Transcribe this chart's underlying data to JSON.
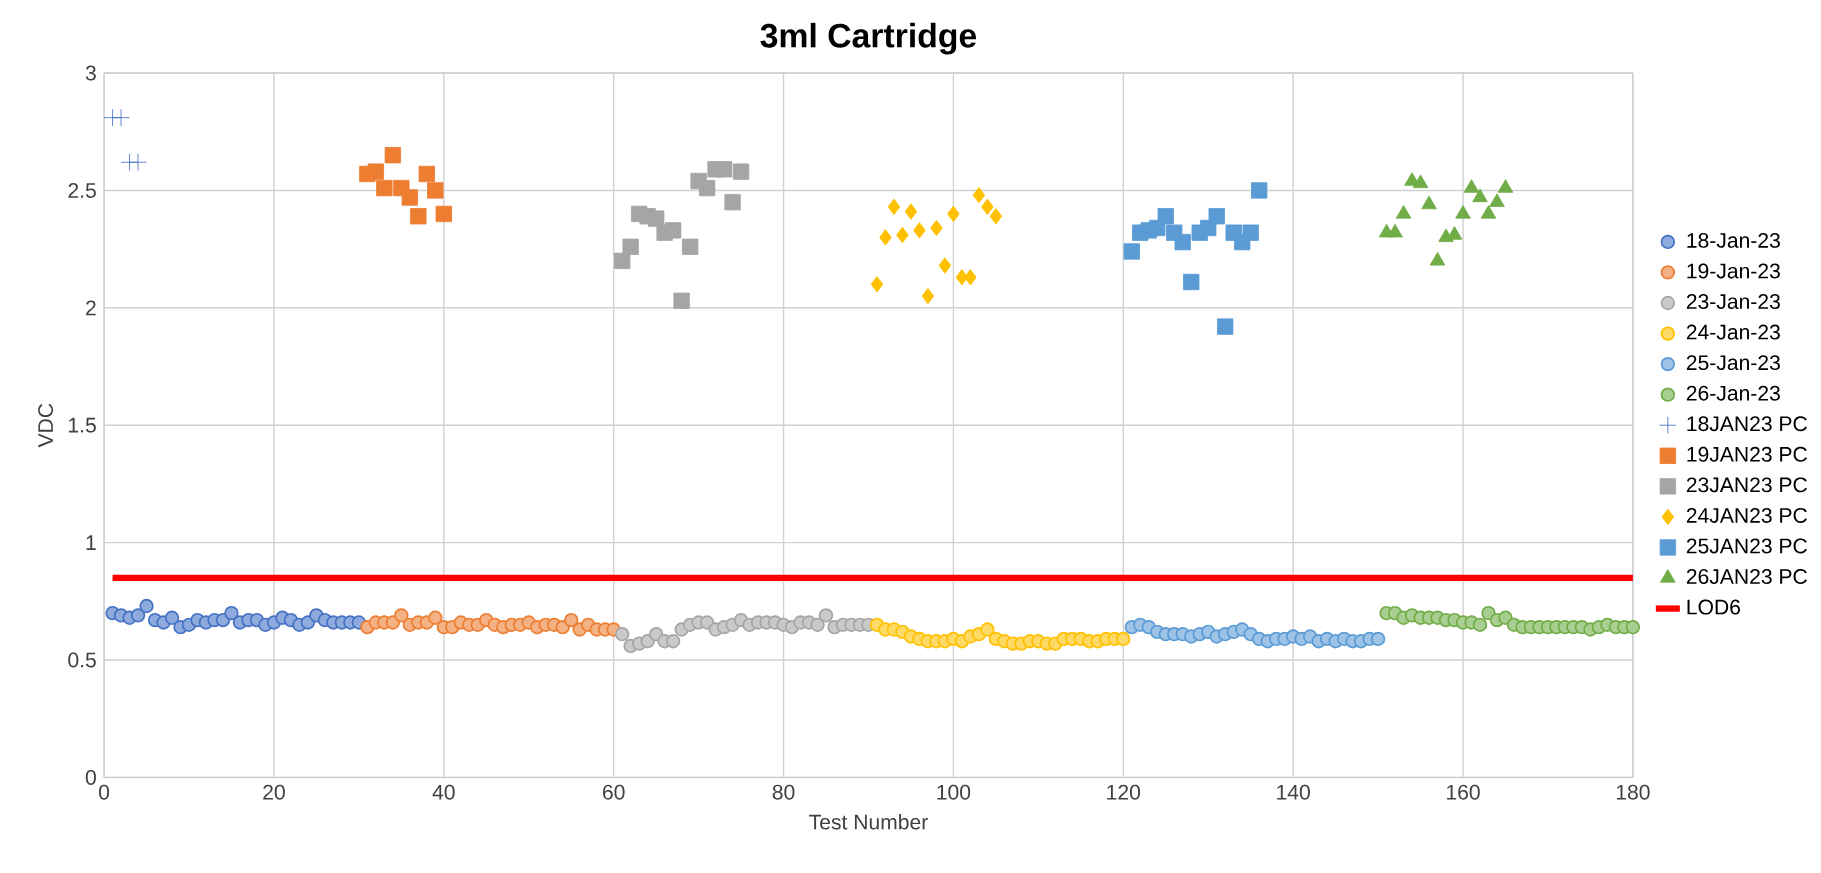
{
  "chart_data": {
    "type": "scatter",
    "title": "3ml Cartridge",
    "xlabel": "Test Number",
    "ylabel": "VDC",
    "xlim": [
      0,
      180
    ],
    "xticks": [
      0,
      20,
      40,
      60,
      80,
      100,
      120,
      140,
      160,
      180
    ],
    "ylim": [
      0,
      3
    ],
    "yticks": [
      0,
      0.5,
      1,
      1.5,
      2,
      2.5,
      3
    ],
    "grid": true,
    "legend": "right",
    "series": [
      {
        "name": "18-Jan-23",
        "color": "#4472c4",
        "marker": "circle",
        "x": [
          1,
          2,
          3,
          4,
          5,
          6,
          7,
          8,
          9,
          10,
          11,
          12,
          13,
          14,
          15,
          16,
          17,
          18,
          19,
          20,
          21,
          22,
          23,
          24,
          25,
          26,
          27,
          28,
          29,
          30
        ],
        "values": [
          0.7,
          0.69,
          0.68,
          0.69,
          0.73,
          0.67,
          0.66,
          0.68,
          0.64,
          0.65,
          0.67,
          0.66,
          0.67,
          0.67,
          0.7,
          0.66,
          0.67,
          0.67,
          0.65,
          0.66,
          0.68,
          0.67,
          0.65,
          0.66,
          0.69,
          0.67,
          0.66,
          0.66,
          0.66,
          0.66
        ]
      },
      {
        "name": "19-Jan-23",
        "color": "#ed7d31",
        "marker": "circle",
        "x": [
          31,
          32,
          33,
          34,
          35,
          36,
          37,
          38,
          39,
          40,
          41,
          42,
          43,
          44,
          45,
          46,
          47,
          48,
          49,
          50,
          51,
          52,
          53,
          54,
          55,
          56,
          57,
          58,
          59,
          60
        ],
        "values": [
          0.64,
          0.66,
          0.66,
          0.66,
          0.69,
          0.65,
          0.66,
          0.66,
          0.68,
          0.64,
          0.64,
          0.66,
          0.65,
          0.65,
          0.67,
          0.65,
          0.64,
          0.65,
          0.65,
          0.66,
          0.64,
          0.65,
          0.65,
          0.64,
          0.67,
          0.63,
          0.65,
          0.63,
          0.63,
          0.63
        ]
      },
      {
        "name": "23-Jan-23",
        "color": "#a5a5a5",
        "marker": "circle",
        "x": [
          61,
          62,
          63,
          64,
          65,
          66,
          67,
          68,
          69,
          70,
          71,
          72,
          73,
          74,
          75,
          76,
          77,
          78,
          79,
          80,
          81,
          82,
          83,
          84,
          85,
          86,
          87,
          88,
          89,
          90
        ],
        "values": [
          0.61,
          0.56,
          0.57,
          0.58,
          0.61,
          0.58,
          0.58,
          0.63,
          0.65,
          0.66,
          0.66,
          0.63,
          0.64,
          0.65,
          0.67,
          0.65,
          0.66,
          0.66,
          0.66,
          0.65,
          0.64,
          0.66,
          0.66,
          0.65,
          0.69,
          0.64,
          0.65,
          0.65,
          0.65,
          0.65
        ]
      },
      {
        "name": "24-Jan-23",
        "color": "#ffc000",
        "marker": "circle",
        "x": [
          91,
          92,
          93,
          94,
          95,
          96,
          97,
          98,
          99,
          100,
          101,
          102,
          103,
          104,
          105,
          106,
          107,
          108,
          109,
          110,
          111,
          112,
          113,
          114,
          115,
          116,
          117,
          118,
          119,
          120
        ],
        "values": [
          0.65,
          0.63,
          0.63,
          0.62,
          0.6,
          0.59,
          0.58,
          0.58,
          0.58,
          0.59,
          0.58,
          0.6,
          0.61,
          0.63,
          0.59,
          0.58,
          0.57,
          0.57,
          0.58,
          0.58,
          0.57,
          0.57,
          0.59,
          0.59,
          0.59,
          0.58,
          0.58,
          0.59,
          0.59,
          0.59
        ]
      },
      {
        "name": "25-Jan-23",
        "color": "#5b9bd5",
        "marker": "circle",
        "x": [
          121,
          122,
          123,
          124,
          125,
          126,
          127,
          128,
          129,
          130,
          131,
          132,
          133,
          134,
          135,
          136,
          137,
          138,
          139,
          140,
          141,
          142,
          143,
          144,
          145,
          146,
          147,
          148,
          149,
          150
        ],
        "values": [
          0.64,
          0.65,
          0.64,
          0.62,
          0.61,
          0.61,
          0.61,
          0.6,
          0.61,
          0.62,
          0.6,
          0.61,
          0.62,
          0.63,
          0.61,
          0.59,
          0.58,
          0.59,
          0.59,
          0.6,
          0.59,
          0.6,
          0.58,
          0.59,
          0.58,
          0.59,
          0.58,
          0.58,
          0.59,
          0.59
        ]
      },
      {
        "name": "26-Jan-23",
        "color": "#70ad47",
        "marker": "circle",
        "x": [
          151,
          152,
          153,
          154,
          155,
          156,
          157,
          158,
          159,
          160,
          161,
          162,
          163,
          164,
          165,
          166,
          167,
          168,
          169,
          170,
          171,
          172,
          173,
          174,
          175,
          176,
          177,
          178,
          179,
          180
        ],
        "values": [
          0.7,
          0.7,
          0.68,
          0.69,
          0.68,
          0.68,
          0.68,
          0.67,
          0.67,
          0.66,
          0.66,
          0.65,
          0.7,
          0.67,
          0.68,
          0.65,
          0.64,
          0.64,
          0.64,
          0.64,
          0.64,
          0.64,
          0.64,
          0.64,
          0.63,
          0.64,
          0.65,
          0.64,
          0.64,
          0.64
        ]
      },
      {
        "name": "18JAN23 PC",
        "color": "#4472c4",
        "marker": "cross",
        "x": [
          1,
          2,
          3,
          4
        ],
        "values": [
          2.81,
          2.81,
          2.62,
          2.62
        ]
      },
      {
        "name": "19JAN23 PC",
        "color": "#ed7d31",
        "marker": "square",
        "x": [
          31,
          32,
          33,
          34,
          35,
          36,
          37,
          38,
          39,
          40
        ],
        "values": [
          2.57,
          2.58,
          2.51,
          2.65,
          2.51,
          2.47,
          2.39,
          2.57,
          2.5,
          2.4
        ]
      },
      {
        "name": "23JAN23 PC",
        "color": "#a5a5a5",
        "marker": "square",
        "x": [
          61,
          62,
          63,
          64,
          65,
          66,
          67,
          68,
          69,
          70,
          71,
          72,
          73,
          74,
          75
        ],
        "values": [
          2.2,
          2.26,
          2.4,
          2.39,
          2.38,
          2.32,
          2.33,
          2.03,
          2.26,
          2.54,
          2.51,
          2.59,
          2.59,
          2.45,
          2.58
        ]
      },
      {
        "name": "24JAN23 PC",
        "color": "#ffc000",
        "marker": "diamond",
        "x": [
          91,
          92,
          93,
          94,
          95,
          96,
          97,
          98,
          99,
          100,
          101,
          102,
          103,
          104,
          105
        ],
        "values": [
          2.1,
          2.3,
          2.43,
          2.31,
          2.41,
          2.33,
          2.05,
          2.34,
          2.18,
          2.4,
          2.13,
          2.13,
          2.48,
          2.43,
          2.39
        ]
      },
      {
        "name": "25JAN23 PC",
        "color": "#5b9bd5",
        "marker": "square",
        "x": [
          121,
          122,
          123,
          124,
          125,
          126,
          127,
          128,
          129,
          130,
          131,
          132,
          133,
          134,
          135,
          136
        ],
        "values": [
          2.24,
          2.32,
          2.33,
          2.34,
          2.39,
          2.32,
          2.28,
          2.11,
          2.32,
          2.34,
          2.39,
          1.92,
          2.32,
          2.28,
          2.32,
          2.5
        ]
      },
      {
        "name": "26JAN23 PC",
        "color": "#70ad47",
        "marker": "triangle",
        "x": [
          151,
          152,
          153,
          154,
          155,
          156,
          157,
          158,
          159,
          160,
          161,
          162,
          163,
          164,
          165
        ],
        "values": [
          2.32,
          2.32,
          2.4,
          2.54,
          2.53,
          2.44,
          2.2,
          2.3,
          2.31,
          2.4,
          2.51,
          2.47,
          2.4,
          2.45,
          2.51
        ]
      },
      {
        "name": "LOD6",
        "type": "line",
        "color": "#ff0000",
        "marker": "none",
        "x": [
          1,
          180
        ],
        "values": [
          0.85,
          0.85
        ]
      }
    ]
  }
}
